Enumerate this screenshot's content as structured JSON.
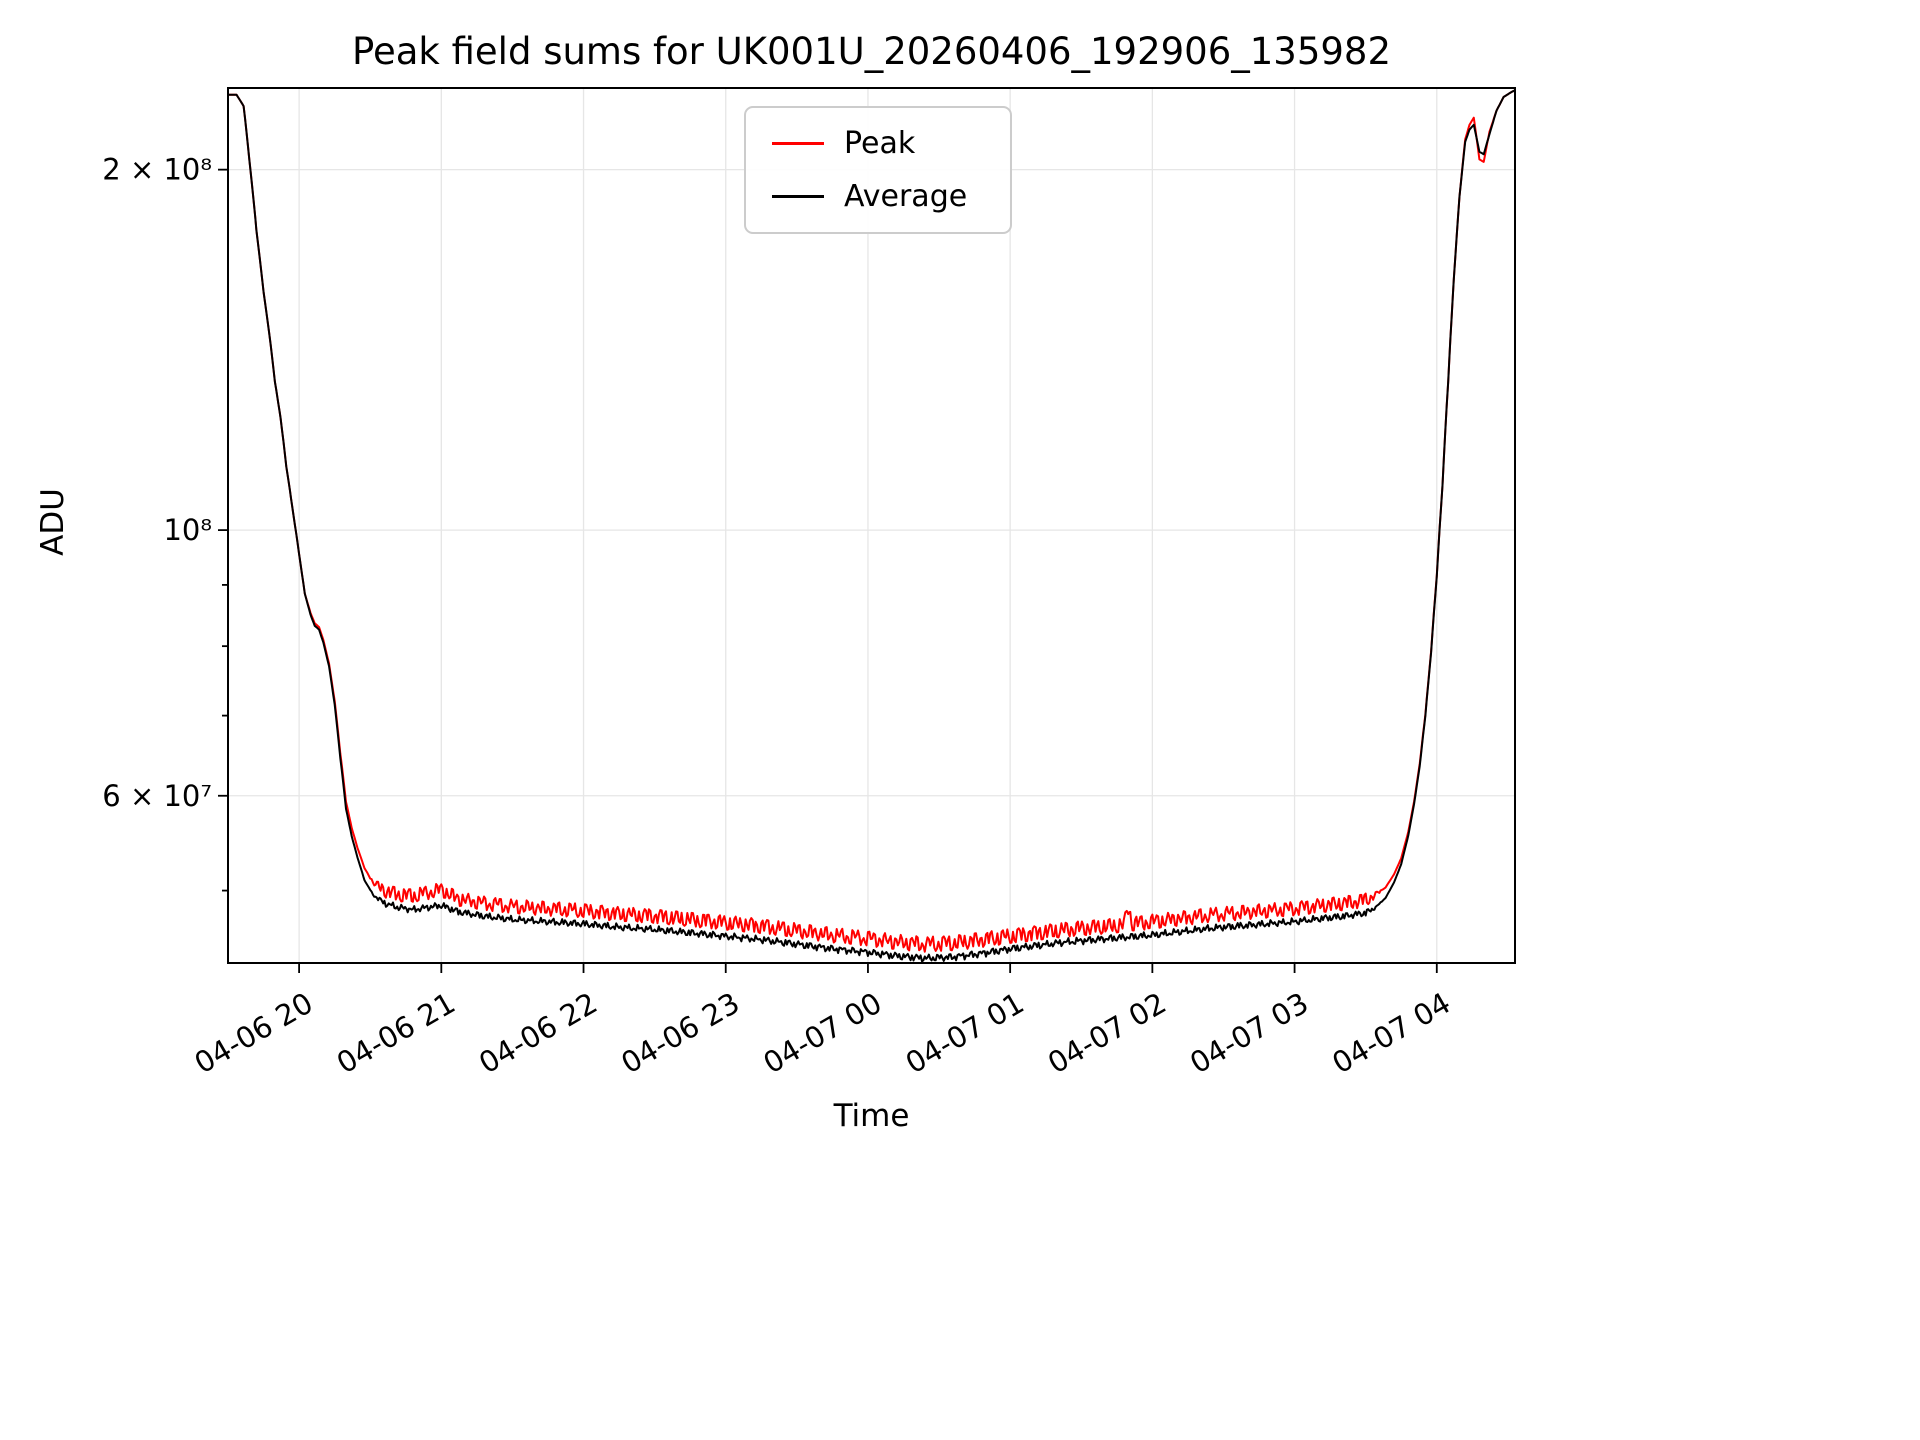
{
  "chart_data": {
    "type": "line",
    "title": "Peak field sums for UK001U_20260406_192906_135982",
    "xlabel": "Time",
    "ylabel": "ADU",
    "yscale": "log",
    "grid": true,
    "grid_color": "#e6e6e6",
    "legend_position": "upper center",
    "ylim": [
      43500000,
      234000000
    ],
    "xlim_hours": [
      19.5,
      28.55
    ],
    "x_ticks": [
      {
        "hour": 20,
        "label": "04-06 20"
      },
      {
        "hour": 21,
        "label": "04-06 21"
      },
      {
        "hour": 22,
        "label": "04-06 22"
      },
      {
        "hour": 23,
        "label": "04-06 23"
      },
      {
        "hour": 24,
        "label": "04-07 00"
      },
      {
        "hour": 25,
        "label": "04-07 01"
      },
      {
        "hour": 26,
        "label": "04-07 02"
      },
      {
        "hour": 27,
        "label": "04-07 03"
      },
      {
        "hour": 28,
        "label": "04-07 04"
      }
    ],
    "y_ticks": [
      {
        "value": 60000000,
        "label": "6 × 10⁷"
      },
      {
        "value": 100000000,
        "label": "10⁸"
      },
      {
        "value": 200000000,
        "label": "2 × 10⁸"
      }
    ],
    "y_minor_ticks": [
      50000000,
      70000000,
      80000000,
      90000000
    ],
    "legend": [
      {
        "name": "Peak",
        "color": "#ff0000",
        "series": "peak"
      },
      {
        "name": "Average",
        "color": "#000000",
        "series": "average"
      }
    ],
    "unit_scale": 1000000,
    "series": {
      "peak": {
        "points": [
          [
            19.5,
            231
          ],
          [
            19.56,
            231
          ],
          [
            19.61,
            226
          ],
          [
            19.65,
            204
          ],
          [
            19.7,
            178
          ],
          [
            19.75,
            158
          ],
          [
            19.79,
            146
          ],
          [
            19.83,
            133
          ],
          [
            19.87,
            124
          ],
          [
            19.91,
            113
          ],
          [
            19.96,
            103
          ],
          [
            20.0,
            95.5
          ],
          [
            20.04,
            88.5
          ],
          [
            20.08,
            85.3
          ],
          [
            20.11,
            83.6
          ],
          [
            20.14,
            83.0
          ],
          [
            20.17,
            81.0
          ],
          [
            20.21,
            77.4
          ],
          [
            20.25,
            72.0
          ],
          [
            20.29,
            65.1
          ],
          [
            20.33,
            59.3
          ],
          [
            20.37,
            56.4
          ],
          [
            20.41,
            54.3
          ],
          [
            20.46,
            52.2
          ],
          [
            20.52,
            50.8
          ],
          [
            20.6,
            50.0
          ],
          [
            20.7,
            49.6
          ],
          [
            20.8,
            49.5
          ],
          [
            20.9,
            49.8
          ],
          [
            21.0,
            50.1
          ],
          [
            21.12,
            49.2
          ],
          [
            21.3,
            48.8
          ],
          [
            21.5,
            48.5
          ],
          [
            21.75,
            48.3
          ],
          [
            22.0,
            48.1
          ],
          [
            22.25,
            47.8
          ],
          [
            22.5,
            47.6
          ],
          [
            22.75,
            47.3
          ],
          [
            23.0,
            47.0
          ],
          [
            23.25,
            46.7
          ],
          [
            23.5,
            46.3
          ],
          [
            23.75,
            45.9
          ],
          [
            24.0,
            45.6
          ],
          [
            24.2,
            45.3
          ],
          [
            24.4,
            45.1
          ],
          [
            24.6,
            45.2
          ],
          [
            24.8,
            45.5
          ],
          [
            25.0,
            45.8
          ],
          [
            25.2,
            46.1
          ],
          [
            25.4,
            46.4
          ],
          [
            25.6,
            46.6
          ],
          [
            25.8,
            46.8
          ],
          [
            25.83,
            48.4
          ],
          [
            25.86,
            46.9
          ],
          [
            26.0,
            47.1
          ],
          [
            26.2,
            47.4
          ],
          [
            26.4,
            47.7
          ],
          [
            26.6,
            47.9
          ],
          [
            26.8,
            48.1
          ],
          [
            27.0,
            48.3
          ],
          [
            27.2,
            48.6
          ],
          [
            27.35,
            48.8
          ],
          [
            27.5,
            49.1
          ],
          [
            27.57,
            49.6
          ],
          [
            27.64,
            50.3
          ],
          [
            27.7,
            51.6
          ],
          [
            27.75,
            53.2
          ],
          [
            27.8,
            56.0
          ],
          [
            27.84,
            59.3
          ],
          [
            27.88,
            63.8
          ],
          [
            27.92,
            70.2
          ],
          [
            27.96,
            79.2
          ],
          [
            28.0,
            91.7
          ],
          [
            28.04,
            109
          ],
          [
            28.08,
            133
          ],
          [
            28.12,
            162
          ],
          [
            28.16,
            190
          ],
          [
            28.2,
            212
          ],
          [
            28.23,
            218
          ],
          [
            28.26,
            221
          ],
          [
            28.3,
            204
          ],
          [
            28.33,
            203
          ],
          [
            28.37,
            215
          ],
          [
            28.42,
            224
          ],
          [
            28.47,
            230
          ],
          [
            28.52,
            232
          ],
          [
            28.55,
            233
          ]
        ]
      },
      "average": {
        "points": [
          [
            19.5,
            231
          ],
          [
            19.56,
            231
          ],
          [
            19.61,
            226
          ],
          [
            19.65,
            204
          ],
          [
            19.7,
            178
          ],
          [
            19.75,
            158
          ],
          [
            19.79,
            146
          ],
          [
            19.83,
            133
          ],
          [
            19.87,
            124
          ],
          [
            19.91,
            113
          ],
          [
            19.96,
            103
          ],
          [
            20.0,
            95.5
          ],
          [
            20.04,
            88.5
          ],
          [
            20.08,
            85.0
          ],
          [
            20.11,
            83.2
          ],
          [
            20.14,
            82.6
          ],
          [
            20.17,
            80.6
          ],
          [
            20.21,
            77.0
          ],
          [
            20.25,
            71.5
          ],
          [
            20.29,
            64.5
          ],
          [
            20.33,
            58.5
          ],
          [
            20.37,
            55.5
          ],
          [
            20.41,
            53.3
          ],
          [
            20.46,
            51.0
          ],
          [
            20.52,
            49.6
          ],
          [
            20.6,
            48.8
          ],
          [
            20.7,
            48.4
          ],
          [
            20.8,
            48.2
          ],
          [
            20.9,
            48.4
          ],
          [
            21.0,
            48.6
          ],
          [
            21.12,
            48.0
          ],
          [
            21.3,
            47.6
          ],
          [
            21.5,
            47.3
          ],
          [
            21.75,
            47.1
          ],
          [
            22.0,
            46.9
          ],
          [
            22.25,
            46.6
          ],
          [
            22.5,
            46.4
          ],
          [
            22.75,
            46.1
          ],
          [
            23.0,
            45.8
          ],
          [
            23.25,
            45.5
          ],
          [
            23.5,
            45.1
          ],
          [
            23.75,
            44.7
          ],
          [
            24.0,
            44.4
          ],
          [
            24.2,
            44.1
          ],
          [
            24.4,
            43.9
          ],
          [
            24.6,
            44.0
          ],
          [
            24.8,
            44.3
          ],
          [
            25.0,
            44.7
          ],
          [
            25.2,
            45.0
          ],
          [
            25.4,
            45.3
          ],
          [
            25.6,
            45.5
          ],
          [
            25.8,
            45.7
          ],
          [
            26.0,
            45.9
          ],
          [
            26.2,
            46.2
          ],
          [
            26.4,
            46.5
          ],
          [
            26.6,
            46.7
          ],
          [
            26.8,
            46.9
          ],
          [
            27.0,
            47.1
          ],
          [
            27.2,
            47.4
          ],
          [
            27.35,
            47.6
          ],
          [
            27.5,
            47.9
          ],
          [
            27.57,
            48.4
          ],
          [
            27.64,
            49.3
          ],
          [
            27.7,
            50.8
          ],
          [
            27.75,
            52.6
          ],
          [
            27.8,
            55.6
          ],
          [
            27.84,
            59.0
          ],
          [
            27.88,
            63.5
          ],
          [
            27.92,
            70.0
          ],
          [
            27.96,
            79.0
          ],
          [
            28.0,
            91.5
          ],
          [
            28.04,
            109
          ],
          [
            28.08,
            133
          ],
          [
            28.12,
            162
          ],
          [
            28.16,
            190
          ],
          [
            28.2,
            211
          ],
          [
            28.23,
            216
          ],
          [
            28.26,
            218
          ],
          [
            28.3,
            207
          ],
          [
            28.33,
            206
          ],
          [
            28.37,
            214
          ],
          [
            28.42,
            224
          ],
          [
            28.47,
            230
          ],
          [
            28.52,
            232
          ],
          [
            28.55,
            233
          ]
        ]
      }
    },
    "noise": {
      "window": [
        20.48,
        27.62
      ],
      "ramp": 0.12,
      "peak": {
        "amp": 0.65,
        "freqs": [
          167.3,
          59.9,
          277.1
        ],
        "phases": [
          0.3,
          1.7,
          4.1
        ],
        "weights": [
          0.5,
          0.35,
          0.15
        ],
        "shape": 2.6
      },
      "average": {
        "amp": 0.33,
        "freqs": [
          211.7,
          83.3,
          331.9
        ],
        "phases": [
          1.1,
          2.9,
          0.5
        ],
        "weights": [
          0.45,
          0.35,
          0.2
        ],
        "shape": 1.4
      }
    }
  }
}
